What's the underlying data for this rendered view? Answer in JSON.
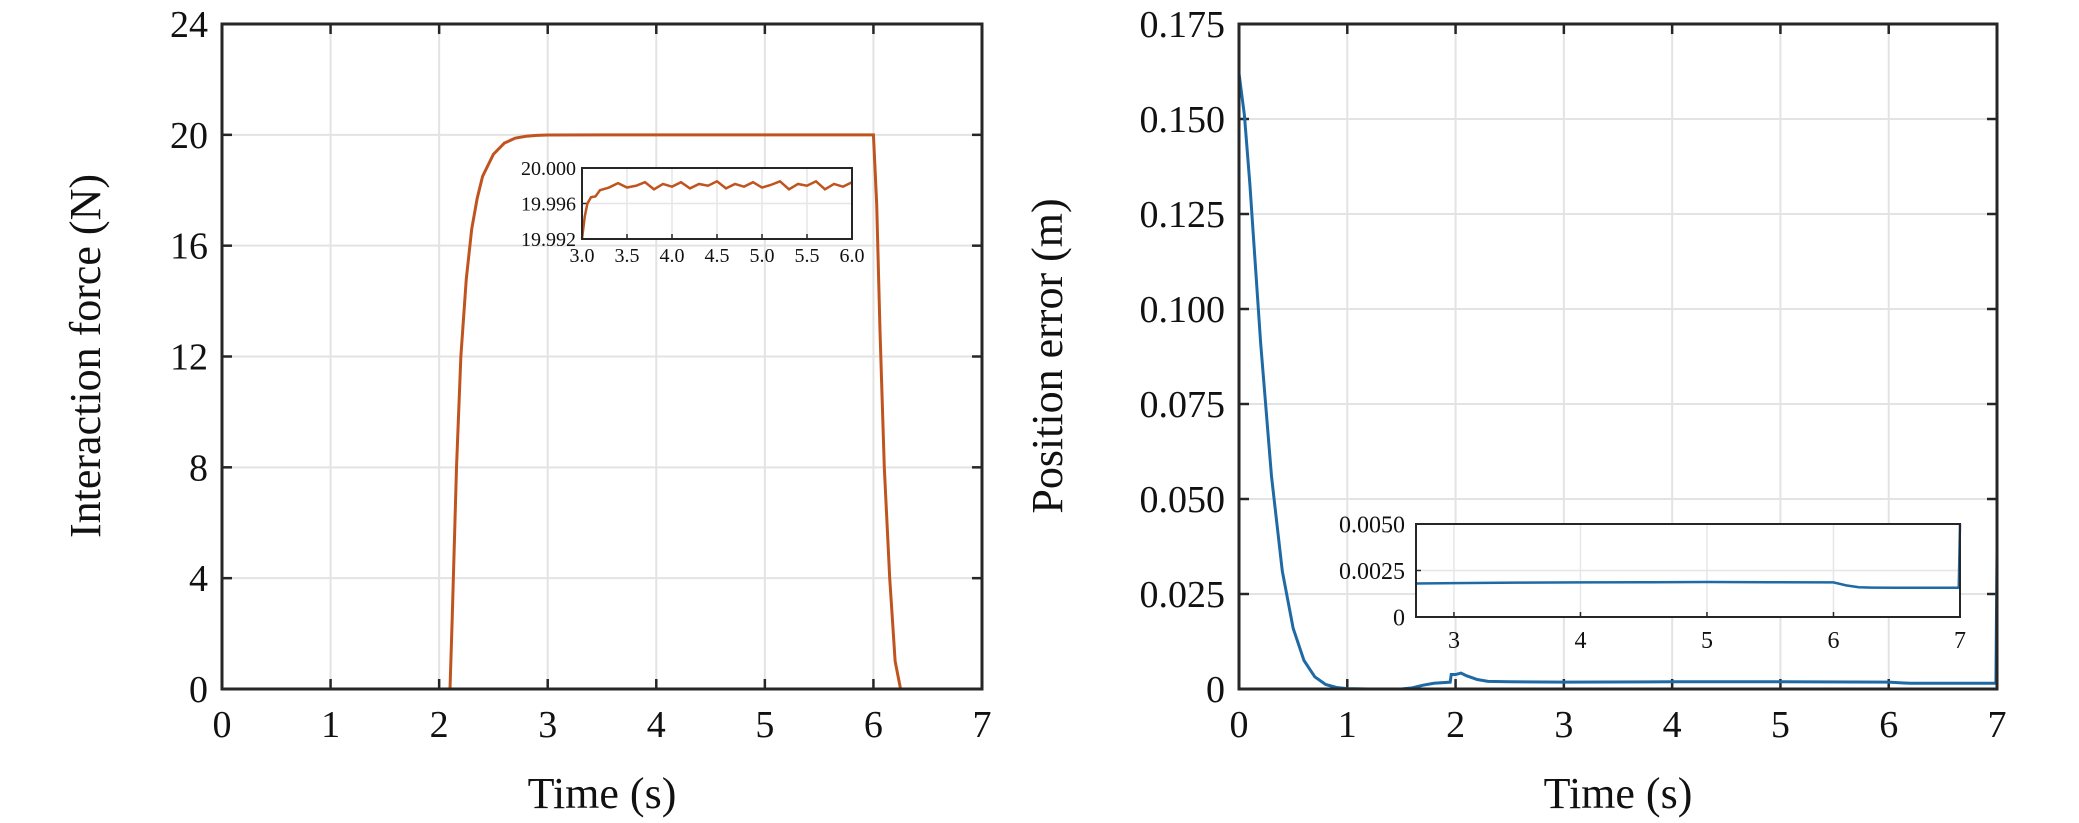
{
  "colors": {
    "force": "#c0541f",
    "error": "#1f6aa5",
    "axis": "#262626",
    "grid": "#e3e3e3"
  },
  "chart_data": [
    {
      "type": "line",
      "xlabel": "Time (s)",
      "ylabel": "Interaction force (N)",
      "xlim": [
        0,
        7
      ],
      "ylim": [
        0,
        24
      ],
      "xticks": [
        "0",
        "1",
        "2",
        "3",
        "4",
        "5",
        "6",
        "7"
      ],
      "yticks": [
        "0",
        "4",
        "8",
        "12",
        "16",
        "20",
        "24"
      ],
      "grid": true,
      "series": [
        {
          "x": [
            0,
            2.0,
            2.1,
            2.12,
            2.16,
            2.2,
            2.25,
            2.3,
            2.35,
            2.4,
            2.5,
            2.6,
            2.7,
            2.8,
            2.9,
            3.0,
            3.5,
            4.0,
            5.0,
            6.0,
            6.03,
            6.06,
            6.1,
            6.15,
            6.2,
            6.25,
            6.3,
            7.0
          ],
          "y": [
            0,
            0,
            0,
            2.5,
            8.0,
            12.0,
            14.8,
            16.6,
            17.7,
            18.5,
            19.3,
            19.7,
            19.88,
            19.95,
            19.98,
            19.995,
            19.998,
            19.998,
            19.998,
            19.998,
            17.5,
            13.0,
            8.0,
            4.0,
            1.0,
            0,
            0,
            0
          ]
        }
      ],
      "inset": {
        "xlim": [
          3.0,
          6.0
        ],
        "ylim": [
          19.992,
          20.0
        ],
        "xticks": [
          "3.0",
          "3.5",
          "4.0",
          "4.5",
          "5.0",
          "5.5",
          "6.0"
        ],
        "yticks": [
          "19.992",
          "19.996",
          "20.000"
        ],
        "x": [
          3.0,
          3.03,
          3.06,
          3.1,
          3.15,
          3.2,
          3.3,
          3.4,
          3.5,
          3.6,
          3.7,
          3.8,
          3.9,
          4.0,
          4.1,
          4.2,
          4.3,
          4.4,
          4.5,
          4.6,
          4.7,
          4.8,
          4.9,
          5.0,
          5.1,
          5.2,
          5.3,
          5.4,
          5.5,
          5.6,
          5.7,
          5.8,
          5.9,
          6.0
        ],
        "y": [
          19.992,
          19.9945,
          19.996,
          19.9967,
          19.9968,
          19.9975,
          19.9978,
          19.9983,
          19.9978,
          19.998,
          19.9984,
          19.9976,
          19.9982,
          19.9979,
          19.9984,
          19.9977,
          19.9982,
          19.998,
          19.9985,
          19.9977,
          19.9982,
          19.9979,
          19.9984,
          19.9978,
          19.9981,
          19.9985,
          19.9976,
          19.9982,
          19.998,
          19.9985,
          19.9976,
          19.9982,
          19.9979,
          19.9984
        ]
      }
    },
    {
      "type": "line",
      "xlabel": "Time (s)",
      "ylabel": "Position error (m)",
      "xlim": [
        0,
        7
      ],
      "ylim": [
        0,
        0.175
      ],
      "xticks": [
        "0",
        "1",
        "2",
        "3",
        "4",
        "5",
        "6",
        "7"
      ],
      "yticks": [
        "0",
        "0.025",
        "0.050",
        "0.075",
        "0.100",
        "0.125",
        "0.150",
        "0.175"
      ],
      "grid": true,
      "series": [
        {
          "x": [
            0,
            0.05,
            0.1,
            0.15,
            0.2,
            0.3,
            0.4,
            0.5,
            0.6,
            0.7,
            0.8,
            0.9,
            1.0,
            1.2,
            1.5,
            1.6,
            1.7,
            1.8,
            1.95,
            1.96,
            2.0,
            2.05,
            2.1,
            2.2,
            2.3,
            2.5,
            3.0,
            4.0,
            5.0,
            6.0,
            6.2,
            7.0,
            6.99,
            7.0
          ],
          "y": [
            0.162,
            0.151,
            0.133,
            0.112,
            0.091,
            0.056,
            0.031,
            0.016,
            0.0075,
            0.0032,
            0.0012,
            0.0004,
            0.0001,
            0.0,
            0.0,
            0.0003,
            0.001,
            0.0015,
            0.0018,
            0.0038,
            0.0038,
            0.0042,
            0.0035,
            0.0025,
            0.002,
            0.0019,
            0.0018,
            0.0019,
            0.0019,
            0.0018,
            0.0015,
            0.0015,
            0.0015,
            0.036
          ]
        }
      ],
      "inset": {
        "xlim": [
          2.7,
          7.0
        ],
        "ylim": [
          0,
          0.005
        ],
        "xticks": [
          "3",
          "4",
          "5",
          "6",
          "7"
        ],
        "yticks": [
          "0",
          "0.0025",
          "0.0050"
        ],
        "x": [
          2.7,
          3.0,
          3.5,
          4.0,
          4.5,
          5.0,
          5.5,
          6.0,
          6.1,
          6.2,
          6.3,
          6.5,
          6.99,
          7.0
        ],
        "y": [
          0.0018,
          0.00182,
          0.00185,
          0.00186,
          0.00187,
          0.00188,
          0.00187,
          0.00186,
          0.0017,
          0.0016,
          0.00158,
          0.00157,
          0.00157,
          0.005
        ]
      }
    }
  ]
}
